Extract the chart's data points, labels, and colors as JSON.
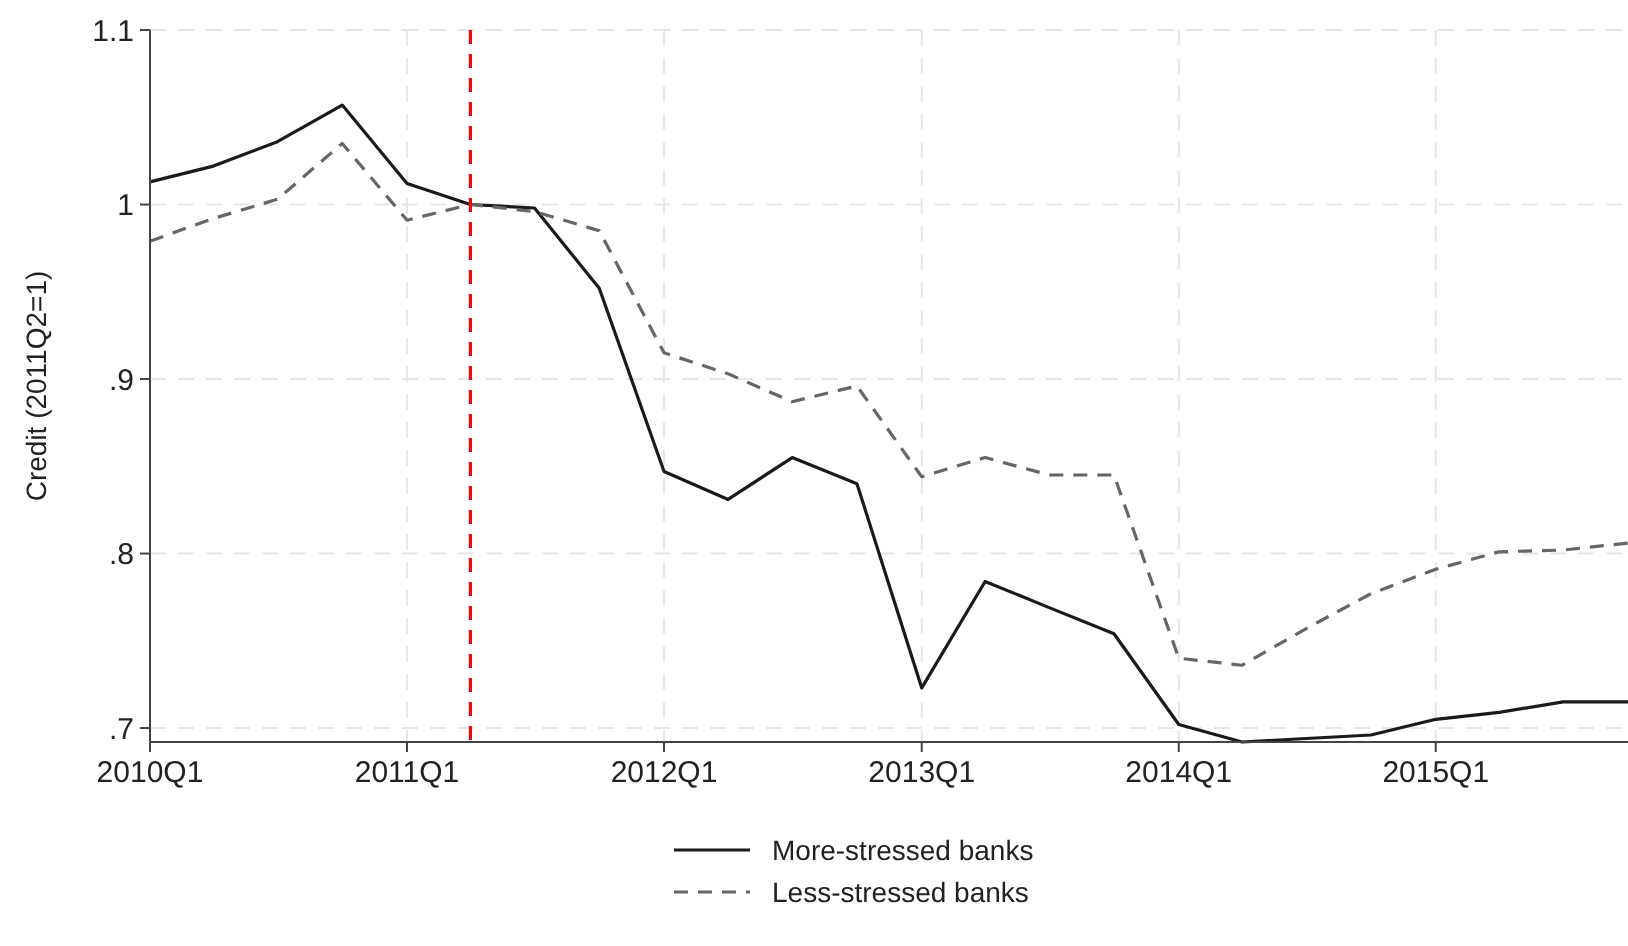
{
  "chart_data": {
    "type": "line",
    "ylabel": "Credit (2011Q2=1)",
    "x": [
      "2010-01",
      "2010-04",
      "2010-07",
      "2010-10",
      "2011-01",
      "2011-04",
      "2011-07",
      "2011-10",
      "2012-01",
      "2012-04",
      "2012-07",
      "2012-10",
      "2013-01",
      "2013-04",
      "2013-07",
      "2013-10",
      "2014-01",
      "2014-04",
      "2014-07",
      "2014-10",
      "2015-01",
      "2015-04",
      "2015-07",
      "2015-10"
    ],
    "series": [
      {
        "name": "More-stressed banks",
        "color": "#1a1a1a",
        "line_style": "solid",
        "values": [
          1.013,
          1.022,
          1.036,
          1.057,
          1.012,
          1.0,
          0.998,
          0.952,
          0.847,
          0.831,
          0.855,
          0.84,
          0.723,
          0.784,
          0.769,
          0.754,
          0.702,
          0.692,
          0.694,
          0.696,
          0.705,
          0.709,
          0.715,
          0.715
        ]
      },
      {
        "name": "Less-stressed banks",
        "color": "#666666",
        "line_style": "dashed",
        "values": [
          0.979,
          0.992,
          1.003,
          1.035,
          0.991,
          1.0,
          0.996,
          0.985,
          0.915,
          0.903,
          0.887,
          0.896,
          0.844,
          0.855,
          0.845,
          0.845,
          0.74,
          0.736,
          0.757,
          0.777,
          0.791,
          0.801,
          0.802,
          0.806
        ]
      }
    ],
    "xlim": [
      "2010-01",
      "2015-10"
    ],
    "xticks": [
      {
        "value": "2010-01",
        "label": "2010Q1"
      },
      {
        "value": "2011-01",
        "label": "2011Q1"
      },
      {
        "value": "2012-01",
        "label": "2012Q1"
      },
      {
        "value": "2013-01",
        "label": "2013Q1"
      },
      {
        "value": "2014-01",
        "label": "2014Q1"
      },
      {
        "value": "2015-01",
        "label": "2015Q1"
      }
    ],
    "ylim": [
      0.692,
      1.1
    ],
    "yticks": [
      {
        "value": 0.7,
        "label": ".7"
      },
      {
        "value": 0.8,
        "label": ".8"
      },
      {
        "value": 0.9,
        "label": ".9"
      },
      {
        "value": 1,
        "label": "1"
      },
      {
        "value": 1.1,
        "label": "1.1"
      }
    ],
    "ref_lines": [
      {
        "axis": "x",
        "value": "2011-04",
        "color": "#ff0000",
        "line_style": "dashed"
      }
    ],
    "grid": true,
    "legend": "bottom"
  }
}
